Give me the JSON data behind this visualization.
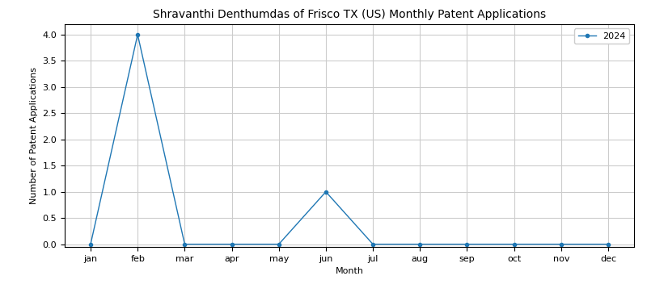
{
  "title": "Shravanthi Denthumdas of Frisco TX (US) Monthly Patent Applications",
  "xlabel": "Month",
  "ylabel": "Number of Patent Applications",
  "legend_label": "2024",
  "months": [
    "jan",
    "feb",
    "mar",
    "apr",
    "may",
    "jun",
    "jul",
    "aug",
    "sep",
    "oct",
    "nov",
    "dec"
  ],
  "values": [
    0,
    4,
    0,
    0,
    0,
    1,
    0,
    0,
    0,
    0,
    0,
    0
  ],
  "line_color": "#1f77b4",
  "marker": "o",
  "ylim": [
    -0.05,
    4.2
  ],
  "figsize": [
    8.0,
    3.73
  ],
  "dpi": 100,
  "title_fontsize": 10,
  "label_fontsize": 8,
  "tick_fontsize": 8,
  "legend_fontsize": 8
}
